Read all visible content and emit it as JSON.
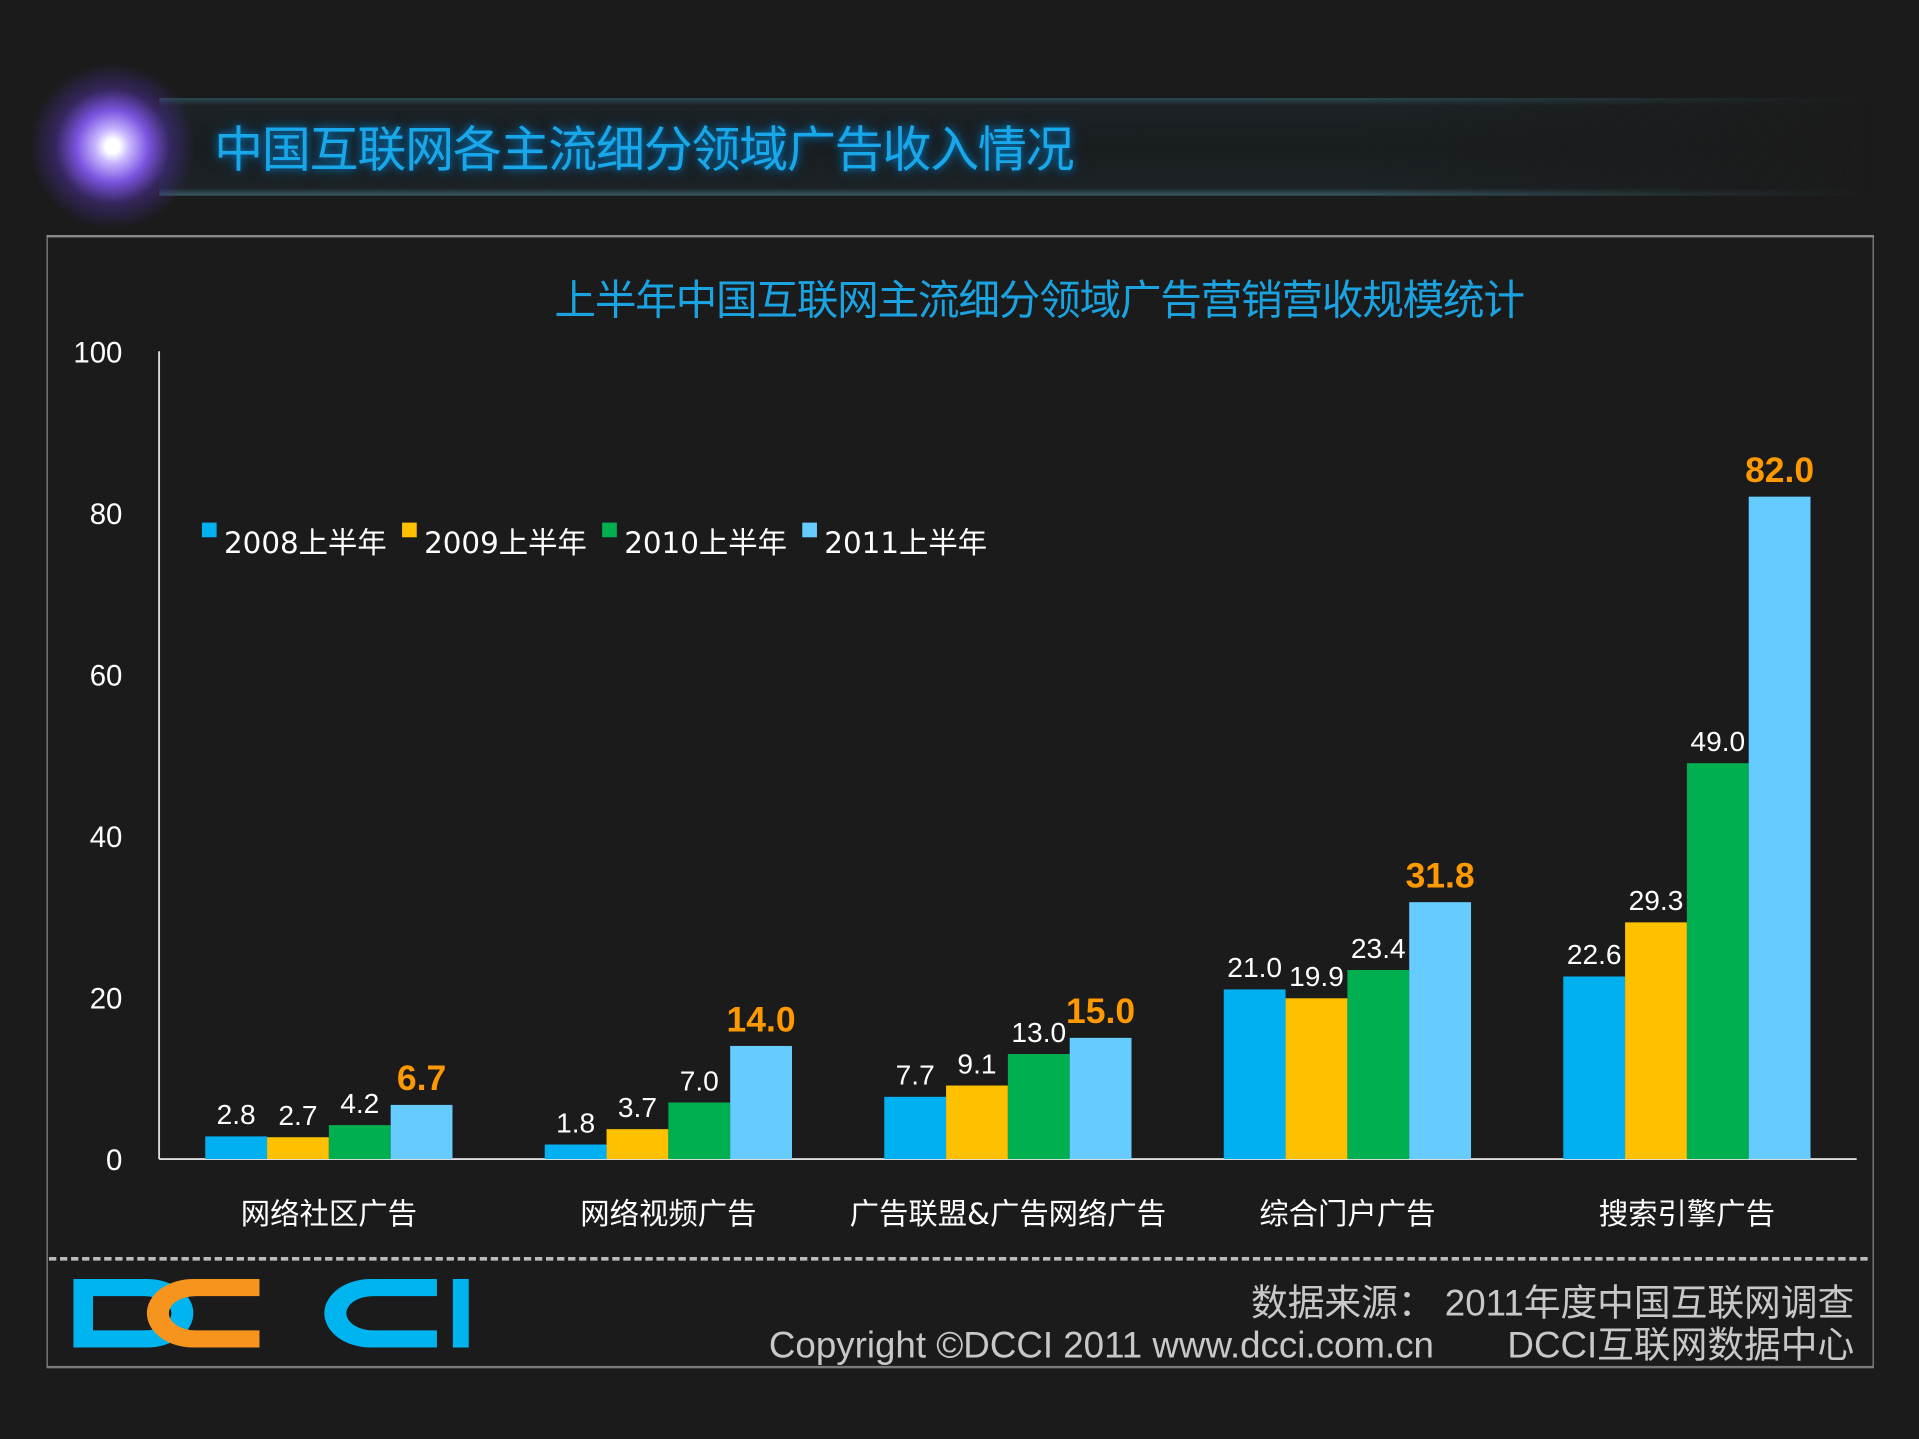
{
  "header": {
    "title": "中国互联网各主流细分领域广告收入情况"
  },
  "footer": {
    "logo_text": "DCCI",
    "source": "数据来源： 2011年度中国互联网调查",
    "copyright": "Copyright ©DCCI 2011 www.dcci.com.cn",
    "org": "DCCI互联网数据中心"
  },
  "chart_data": {
    "type": "bar",
    "title": "上半年中国互联网主流细分领域广告营销营收规模统计",
    "xlabel": "",
    "ylabel": "",
    "ylim": [
      0,
      100
    ],
    "yticks": [
      "0",
      "20",
      "40",
      "60",
      "80",
      "100"
    ],
    "grid": false,
    "legend_position": "top-left",
    "categories": [
      "网络社区广告",
      "网络视频广告",
      "广告联盟&广告网络广告",
      "综合门户广告",
      "搜索引擎广告"
    ],
    "series": [
      {
        "name": "2008上半年",
        "color": "#00b0f0",
        "values": [
          2.8,
          1.8,
          7.7,
          21.0,
          22.6
        ],
        "labels": [
          "2.8",
          "1.8",
          "7.7",
          "21.0",
          "22.6"
        ]
      },
      {
        "name": "2009上半年",
        "color": "#ffc000",
        "values": [
          2.7,
          3.7,
          9.1,
          19.9,
          29.3
        ],
        "labels": [
          "2.7",
          "3.7",
          "9.1",
          "19.9",
          "29.3"
        ]
      },
      {
        "name": "2010上半年",
        "color": "#00b050",
        "values": [
          4.2,
          7.0,
          13.0,
          23.4,
          49.0
        ],
        "labels": [
          "4.2",
          "7.0",
          "13.0",
          "23.4",
          "49.0"
        ]
      },
      {
        "name": "2011上半年",
        "color": "#66ccff",
        "values": [
          6.7,
          14.0,
          15.0,
          31.8,
          82.0
        ],
        "labels": [
          "6.7",
          "14.0",
          "15.0",
          "31.8",
          "82.0"
        ],
        "label_color": "#ff9900"
      }
    ]
  }
}
